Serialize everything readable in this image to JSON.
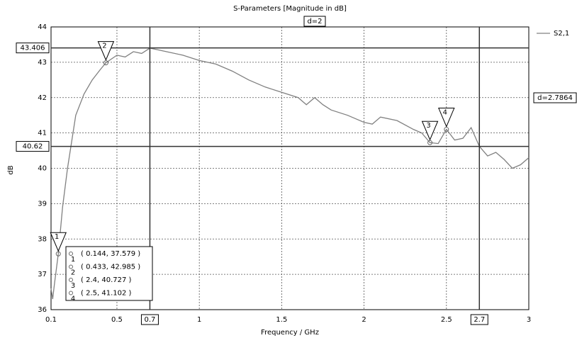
{
  "chart_data": {
    "type": "line",
    "title": "S-Parameters [Magnitude in dB]",
    "xlabel": "Frequency / GHz",
    "ylabel": "dB",
    "x": [
      0.1,
      0.11,
      0.12,
      0.144,
      0.17,
      0.2,
      0.25,
      0.3,
      0.35,
      0.4,
      0.433,
      0.5,
      0.55,
      0.6,
      0.65,
      0.7,
      0.75,
      0.8,
      0.9,
      1.0,
      1.1,
      1.2,
      1.3,
      1.4,
      1.5,
      1.6,
      1.65,
      1.7,
      1.75,
      1.8,
      1.9,
      2.0,
      2.05,
      2.1,
      2.2,
      2.3,
      2.35,
      2.4,
      2.45,
      2.5,
      2.55,
      2.6,
      2.65,
      2.7,
      2.75,
      2.8,
      2.85,
      2.9,
      2.95,
      3.0
    ],
    "series": [
      {
        "name": "S2,1",
        "color": "#808080",
        "values": [
          36.6,
          36.3,
          36.7,
          37.579,
          38.9,
          40.0,
          41.5,
          42.1,
          42.5,
          42.8,
          42.985,
          43.2,
          43.15,
          43.3,
          43.25,
          43.4,
          43.35,
          43.3,
          43.2,
          43.05,
          42.95,
          42.75,
          42.5,
          42.3,
          42.15,
          42.0,
          41.8,
          42.0,
          41.8,
          41.65,
          41.5,
          41.3,
          41.25,
          41.45,
          41.35,
          41.1,
          41.0,
          40.727,
          40.7,
          41.102,
          40.8,
          40.85,
          41.15,
          40.62,
          40.35,
          40.45,
          40.25,
          40.0,
          40.1,
          40.3
        ]
      }
    ],
    "xlim": [
      0.1,
      3
    ],
    "ylim": [
      36,
      44
    ],
    "xticks": [
      0.1,
      0.5,
      1,
      1.5,
      2,
      2.5,
      3
    ],
    "yticks": [
      36,
      37,
      38,
      39,
      40,
      41,
      42,
      43,
      44
    ],
    "grid": true,
    "vlines": [
      {
        "value": 0.7,
        "label": "0.7"
      },
      {
        "value": 2.7,
        "label": "2.7"
      }
    ],
    "hlines": [
      {
        "value": 43.406,
        "label": "43.406"
      },
      {
        "value": 40.62,
        "label": "40.62"
      }
    ],
    "annotations": [
      "d=2",
      "d=2.7864"
    ],
    "markers": [
      {
        "id": "1",
        "x": 0.144,
        "y": 37.579,
        "label": "( 0.144, 37.579 )"
      },
      {
        "id": "2",
        "x": 0.433,
        "y": 42.985,
        "label": "( 0.433, 42.985 )"
      },
      {
        "id": "3",
        "x": 2.4,
        "y": 40.727,
        "label": "( 2.4, 40.727 )"
      },
      {
        "id": "4",
        "x": 2.5,
        "y": 41.102,
        "label": "( 2.5, 41.102 )"
      }
    ]
  }
}
